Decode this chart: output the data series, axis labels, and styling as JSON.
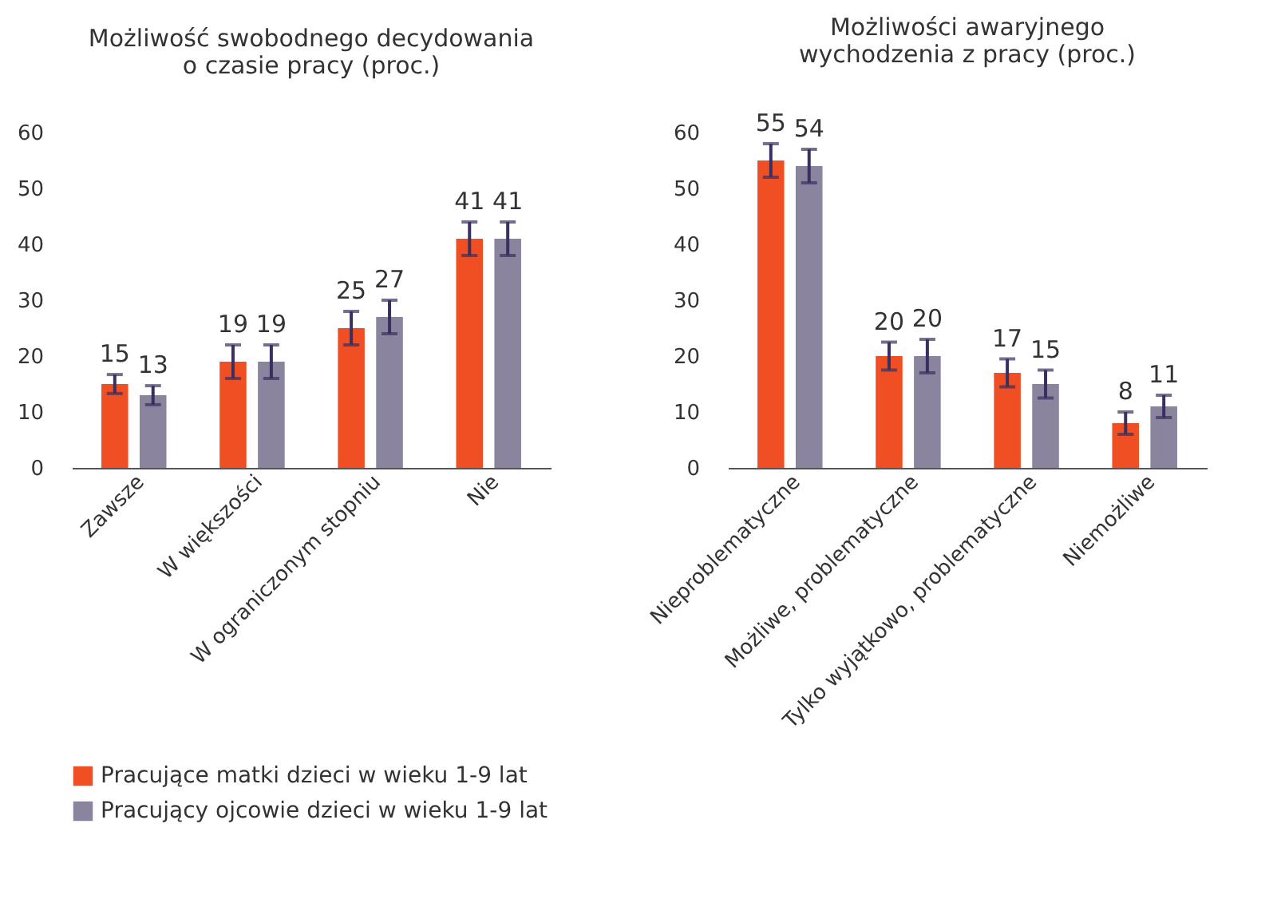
{
  "chart_data": [
    {
      "type": "bar",
      "title": "Możliwość swobodnego decydowania o czasie pracy (proc.)",
      "categories": [
        "Zawsze",
        "W większości",
        "W ograniczonym stopniu",
        "Nie"
      ],
      "series": [
        {
          "name": "Pracujące matki dzieci w wieku 1-9 lat",
          "color": "#f04e23",
          "values": [
            15,
            19,
            25,
            41
          ],
          "errors": [
            1.7,
            3,
            3,
            3
          ]
        },
        {
          "name": "Pracujący ojcowie dzieci w wieku 1-9 lat",
          "color": "#8a849e",
          "values": [
            13,
            19,
            27,
            41
          ],
          "errors": [
            1.7,
            3,
            3,
            3
          ]
        }
      ],
      "ylim": [
        0,
        60
      ],
      "yticks": [
        0,
        10,
        20,
        30,
        40,
        50,
        60
      ],
      "grid": false,
      "data_labels": true,
      "legend": "bottom left"
    },
    {
      "type": "bar",
      "title": "Możliwości awaryjnego wychodzenia z pracy (proc.)",
      "categories": [
        "Nieproblematyczne",
        "Możliwe, problematyczne",
        "Tylko wyjątkowo, problematyczne",
        "Niemożliwe"
      ],
      "series": [
        {
          "name": "Pracujące matki dzieci w wieku 1-9 lat",
          "color": "#f04e23",
          "values": [
            55,
            20,
            17,
            8
          ],
          "errors": [
            3,
            2.5,
            2.5,
            2
          ]
        },
        {
          "name": "Pracujący ojcowie dzieci w wieku 1-9 lat",
          "color": "#8a849e",
          "values": [
            54,
            20,
            15,
            11
          ],
          "errors": [
            3,
            3,
            2.5,
            2
          ]
        }
      ],
      "ylim": [
        0,
        60
      ],
      "yticks": [
        0,
        10,
        20,
        30,
        40,
        50,
        60
      ],
      "grid": false,
      "data_labels": true,
      "legend": false
    }
  ]
}
